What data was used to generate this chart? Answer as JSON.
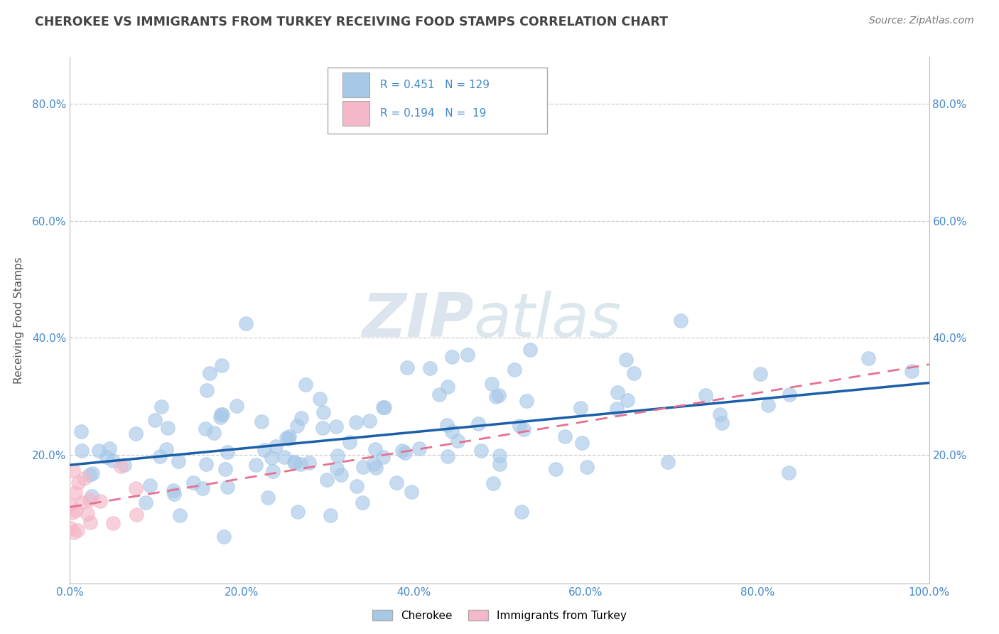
{
  "title": "CHEROKEE VS IMMIGRANTS FROM TURKEY RECEIVING FOOD STAMPS CORRELATION CHART",
  "source": "Source: ZipAtlas.com",
  "ylabel": "Receiving Food Stamps",
  "xlabel": "",
  "watermark_zip": "ZIP",
  "watermark_atlas": "atlas",
  "legend_r1": "R = 0.451",
  "legend_n1": "N = 129",
  "legend_r2": "R = 0.194",
  "legend_n2": "N =  19",
  "legend_label1": "Cherokee",
  "legend_label2": "Immigrants from Turkey",
  "color1": "#a8c8e8",
  "color2": "#f4b8c8",
  "line_color1": "#1a5fa8",
  "line_color2": "#e87090",
  "R1": 0.451,
  "N1": 129,
  "R2": 0.194,
  "N2": 19,
  "xlim": [
    0.0,
    1.0
  ],
  "ylim": [
    -0.02,
    0.88
  ],
  "xticks": [
    0.0,
    0.2,
    0.4,
    0.6,
    0.8,
    1.0
  ],
  "yticks": [
    0.0,
    0.2,
    0.4,
    0.6,
    0.8
  ],
  "ytick_labels_left": [
    "",
    "20.0%",
    "40.0%",
    "60.0%",
    "80.0%"
  ],
  "ytick_labels_right": [
    "",
    "20.0%",
    "40.0%",
    "60.0%",
    "80.0%"
  ],
  "xtick_labels": [
    "0.0%",
    "20.0%",
    "40.0%",
    "60.0%",
    "80.0%",
    "100.0%"
  ],
  "seed1": 42,
  "seed2": 77,
  "background_color": "#ffffff",
  "grid_color": "#cccccc",
  "title_color": "#444444",
  "axis_label_color": "#555555",
  "tick_color": "#4488cc",
  "source_color": "#777777"
}
